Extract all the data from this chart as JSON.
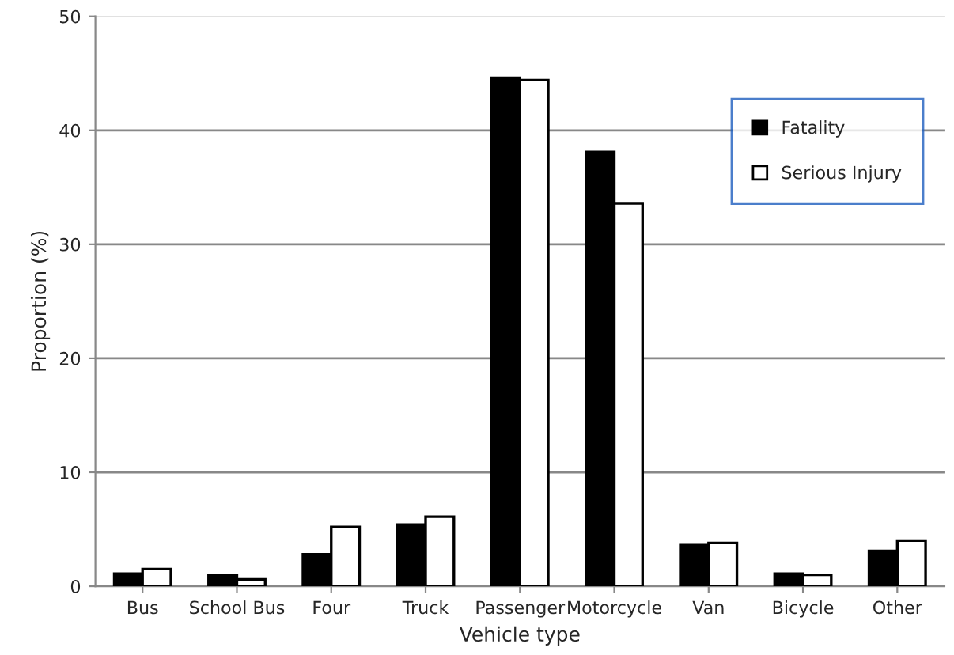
{
  "chart_data": {
    "type": "bar",
    "xlabel": "Vehicle type",
    "ylabel": "Proportion (%)",
    "categories": [
      "Bus",
      "School Bus",
      "Four",
      "Truck",
      "Passenger",
      "Motorcycle",
      "Van",
      "Bicycle",
      "Other"
    ],
    "series": [
      {
        "name": "Fatality",
        "color": "#000000",
        "values": [
          1.1,
          1.0,
          2.8,
          5.4,
          44.6,
          38.1,
          3.6,
          1.1,
          3.1
        ]
      },
      {
        "name": "Serious Injury",
        "color": "#ffffff",
        "values": [
          1.5,
          0.6,
          5.2,
          6.1,
          44.4,
          33.6,
          3.8,
          1.0,
          4.0
        ]
      }
    ],
    "ylim": [
      0,
      50
    ],
    "yticks": [
      0,
      10,
      20,
      30,
      40,
      50
    ],
    "grid": "y",
    "legend": "top right"
  }
}
